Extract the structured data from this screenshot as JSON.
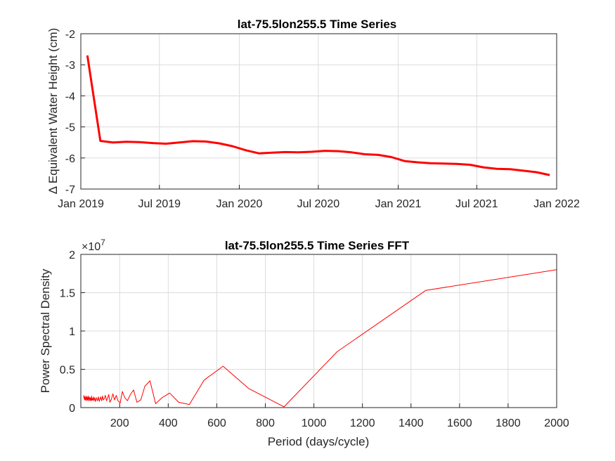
{
  "colors": {
    "series": "#ff0000",
    "axis": "#262626",
    "grid": "#dcdcdc"
  },
  "chart_data": [
    {
      "type": "line",
      "title": "lat-75.5lon255.5 Time Series",
      "xlabel": "",
      "ylabel": "Δ Equivalent Water Height (cm)",
      "x_ticks": [
        "Jan 2019",
        "Jul 2019",
        "Jan 2020",
        "Jul 2020",
        "Jan 2021",
        "Jul 2021",
        "Jan 2022"
      ],
      "y_ticks": [
        "-2",
        "-3",
        "-4",
        "-5",
        "-6",
        "-7"
      ],
      "xlim": [
        "2019-01-01",
        "2022-01-01"
      ],
      "ylim": [
        -7,
        -2
      ],
      "grid": true,
      "series": [
        {
          "x": [
            "2019-01-16",
            "2019-02-15",
            "2019-03-16",
            "2019-04-16",
            "2019-05-16",
            "2019-06-16",
            "2019-07-16",
            "2019-08-16",
            "2019-09-16",
            "2019-10-16",
            "2019-11-16",
            "2019-12-16",
            "2020-01-16",
            "2020-02-15",
            "2020-03-16",
            "2020-04-16",
            "2020-05-16",
            "2020-06-16",
            "2020-07-16",
            "2020-08-16",
            "2020-09-16",
            "2020-10-16",
            "2020-11-16",
            "2020-12-16",
            "2021-01-16",
            "2021-02-15",
            "2021-03-16",
            "2021-04-16",
            "2021-05-16",
            "2021-06-16",
            "2021-07-16",
            "2021-08-16",
            "2021-09-16",
            "2021-10-16",
            "2021-11-16",
            "2021-12-16"
          ],
          "values": [
            -2.7,
            -5.45,
            -5.5,
            -5.48,
            -5.49,
            -5.52,
            -5.54,
            -5.5,
            -5.46,
            -5.47,
            -5.53,
            -5.62,
            -5.75,
            -5.85,
            -5.83,
            -5.81,
            -5.82,
            -5.8,
            -5.77,
            -5.78,
            -5.82,
            -5.88,
            -5.9,
            -5.97,
            -6.1,
            -6.14,
            -6.17,
            -6.18,
            -6.19,
            -6.22,
            -6.3,
            -6.35,
            -6.36,
            -6.41,
            -6.46,
            -6.55
          ]
        }
      ]
    },
    {
      "type": "line",
      "title": "lat-75.5lon255.5 Time Series FFT",
      "xlabel": "Period (days/cycle)",
      "ylabel": "Power Spectral Density",
      "y_exponent": "×10",
      "y_exponent_power": "7",
      "x_ticks": [
        "200",
        "400",
        "600",
        "800",
        "1000",
        "1200",
        "1400",
        "1600",
        "1800",
        "2000"
      ],
      "y_ticks": [
        "0",
        "0.5",
        "1",
        "1.5",
        "2"
      ],
      "xlim": [
        40,
        2000
      ],
      "ylim": [
        0,
        20000000
      ],
      "grid": true,
      "series": [
        {
          "x": [
            2000,
            1461,
            1096,
            877,
            731,
            626,
            548,
            487,
            443,
            406,
            375,
            348,
            325,
            304,
            287,
            271,
            257,
            244,
            232,
            221,
            211,
            202,
            193,
            186,
            179,
            172,
            166,
            160,
            155,
            150,
            146,
            141,
            137,
            133,
            129,
            126,
            122,
            119,
            116,
            113,
            110,
            108,
            105,
            103,
            100,
            98,
            96,
            94,
            92,
            90,
            88,
            86,
            84,
            83,
            81,
            80,
            78,
            77,
            75,
            74,
            73,
            71,
            70,
            69,
            68,
            67,
            66,
            65,
            64,
            63,
            62,
            61,
            60,
            59,
            58,
            57,
            56,
            55,
            54,
            53,
            52
          ],
          "values": [
            18000000,
            15300000,
            7300000,
            100000,
            2500000,
            5400000,
            3600000,
            400000,
            700000,
            1900000,
            1300000,
            500000,
            3500000,
            2800000,
            1000000,
            700000,
            2300000,
            1700000,
            900000,
            1300000,
            2100000,
            600000,
            900000,
            1600000,
            1000000,
            1800000,
            1100000,
            700000,
            1700000,
            1200000,
            900000,
            1600000,
            1200000,
            1000000,
            1500000,
            900000,
            1400000,
            1100000,
            800000,
            1400000,
            1000000,
            900000,
            1300000,
            1100000,
            800000,
            1300000,
            1100000,
            900000,
            1400000,
            1000000,
            1200000,
            900000,
            1500000,
            1100000,
            900000,
            1300000,
            1100000,
            900000,
            1400000,
            1100000,
            1300000,
            900000,
            1500000,
            1000000,
            1200000,
            1000000,
            1400000,
            1100000,
            1300000,
            900000,
            1500000,
            1100000,
            1200000,
            1000000,
            1400000,
            1100000,
            1300000,
            1000000,
            1500000,
            1200000,
            1600000
          ]
        }
      ]
    }
  ]
}
